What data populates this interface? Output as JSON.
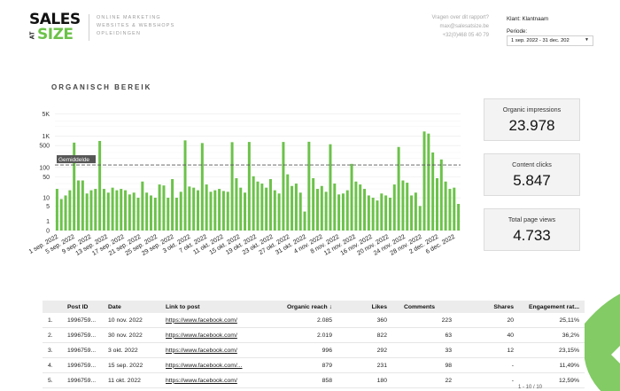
{
  "header": {
    "logo_top": "SALES",
    "logo_at": "AT",
    "logo_bottom": "SIZE",
    "tagline": [
      "ONLINE MARKETING",
      "WEBSITES & WEBSHOPS",
      "OPLEIDINGEN"
    ],
    "contact": [
      "Vragen over dit rapport?",
      "max@salesatsize.be",
      "+32(0)468 05 40 79"
    ],
    "client_label": "Klant: Klantnaam",
    "period_label": "Periode:",
    "period_value": "1 sep. 2022 - 31 dec. 202",
    "period_caret": "▼"
  },
  "section": {
    "title": "ORGANISCH BEREIK"
  },
  "colors": {
    "bar": "#6cc24a",
    "brand_green": "#6cc24a",
    "avg_line": "#555555"
  },
  "chart_data": {
    "type": "bar",
    "scale": "log",
    "yticks": [
      "0",
      "1",
      "5",
      "10",
      "50",
      "100",
      "500",
      "1K",
      "5K"
    ],
    "ytick_values": [
      0,
      1,
      5,
      10,
      50,
      100,
      500,
      1000,
      5000
    ],
    "avg_label": "Gemiddelde",
    "avg_value": 120,
    "xtick_labels": [
      "1 sep. 2022",
      "5 sep. 2022",
      "9 sep. 2022",
      "13 sep. 2022",
      "17 sep. 2022",
      "21 sep. 2022",
      "25 sep. 2022",
      "29 sep. 2022",
      "3 okt. 2022",
      "7 okt. 2022",
      "11 okt. 2022",
      "15 okt. 2022",
      "19 okt. 2022",
      "23 okt. 2022",
      "27 okt. 2022",
      "31 okt. 2022",
      "4 nov. 2022",
      "8 nov. 2022",
      "12 nov. 2022",
      "16 nov. 2022",
      "20 nov. 2022",
      "24 nov. 2022",
      "28 nov. 2022",
      "2 dec. 2022",
      "6 dec. 2022"
    ],
    "values": [
      20,
      9,
      12,
      18,
      620,
      38,
      38,
      14,
      18,
      20,
      700,
      20,
      15,
      22,
      18,
      20,
      18,
      13,
      15,
      10,
      35,
      15,
      12,
      10,
      28,
      26,
      10,
      42,
      10,
      16,
      730,
      24,
      22,
      18,
      600,
      28,
      16,
      18,
      20,
      17,
      16,
      640,
      45,
      22,
      15,
      650,
      52,
      35,
      30,
      22,
      42,
      18,
      14,
      650,
      60,
      25,
      30,
      15,
      3,
      660,
      45,
      20,
      25,
      16,
      550,
      30,
      13,
      14,
      18,
      130,
      35,
      28,
      20,
      12,
      10,
      8,
      14,
      12,
      10,
      28,
      450,
      38,
      32,
      12,
      15,
      5,
      1400,
      1200,
      300,
      45,
      180,
      35,
      20,
      22,
      6
    ]
  },
  "kpis": [
    {
      "label": "Organic impressions",
      "value": "23.978"
    },
    {
      "label": "Content clicks",
      "value": "5.847"
    },
    {
      "label": "Total page views",
      "value": "4.733"
    }
  ],
  "table": {
    "columns": [
      "",
      "Post ID",
      "Date",
      "Link to post",
      "Organic reach ↓",
      "Likes",
      "Comments",
      "Shares",
      "Engagement rat..."
    ],
    "rows": [
      [
        "1.",
        "1996759...",
        "10 nov. 2022",
        "https://www.facebook.com/",
        "2.085",
        "360",
        "223",
        "20",
        "25,11%"
      ],
      [
        "2.",
        "1996759...",
        "30 nov. 2022",
        "https://www.facebook.com/",
        "2.019",
        "822",
        "63",
        "40",
        "36,2%"
      ],
      [
        "3.",
        "1996759...",
        "3 okt. 2022",
        "https://www.facebook.com/",
        "996",
        "292",
        "33",
        "12",
        "23,15%"
      ],
      [
        "4.",
        "1996759...",
        "15 sep. 2022",
        "https://www.facebook.com/...",
        "879",
        "231",
        "98",
        "-",
        "11,49%"
      ],
      [
        "5.",
        "1996759...",
        "11 okt. 2022",
        "https://www.facebook.com/",
        "858",
        "180",
        "22",
        "-",
        "12,59%"
      ]
    ],
    "pager": "1 - 10 / 10"
  }
}
